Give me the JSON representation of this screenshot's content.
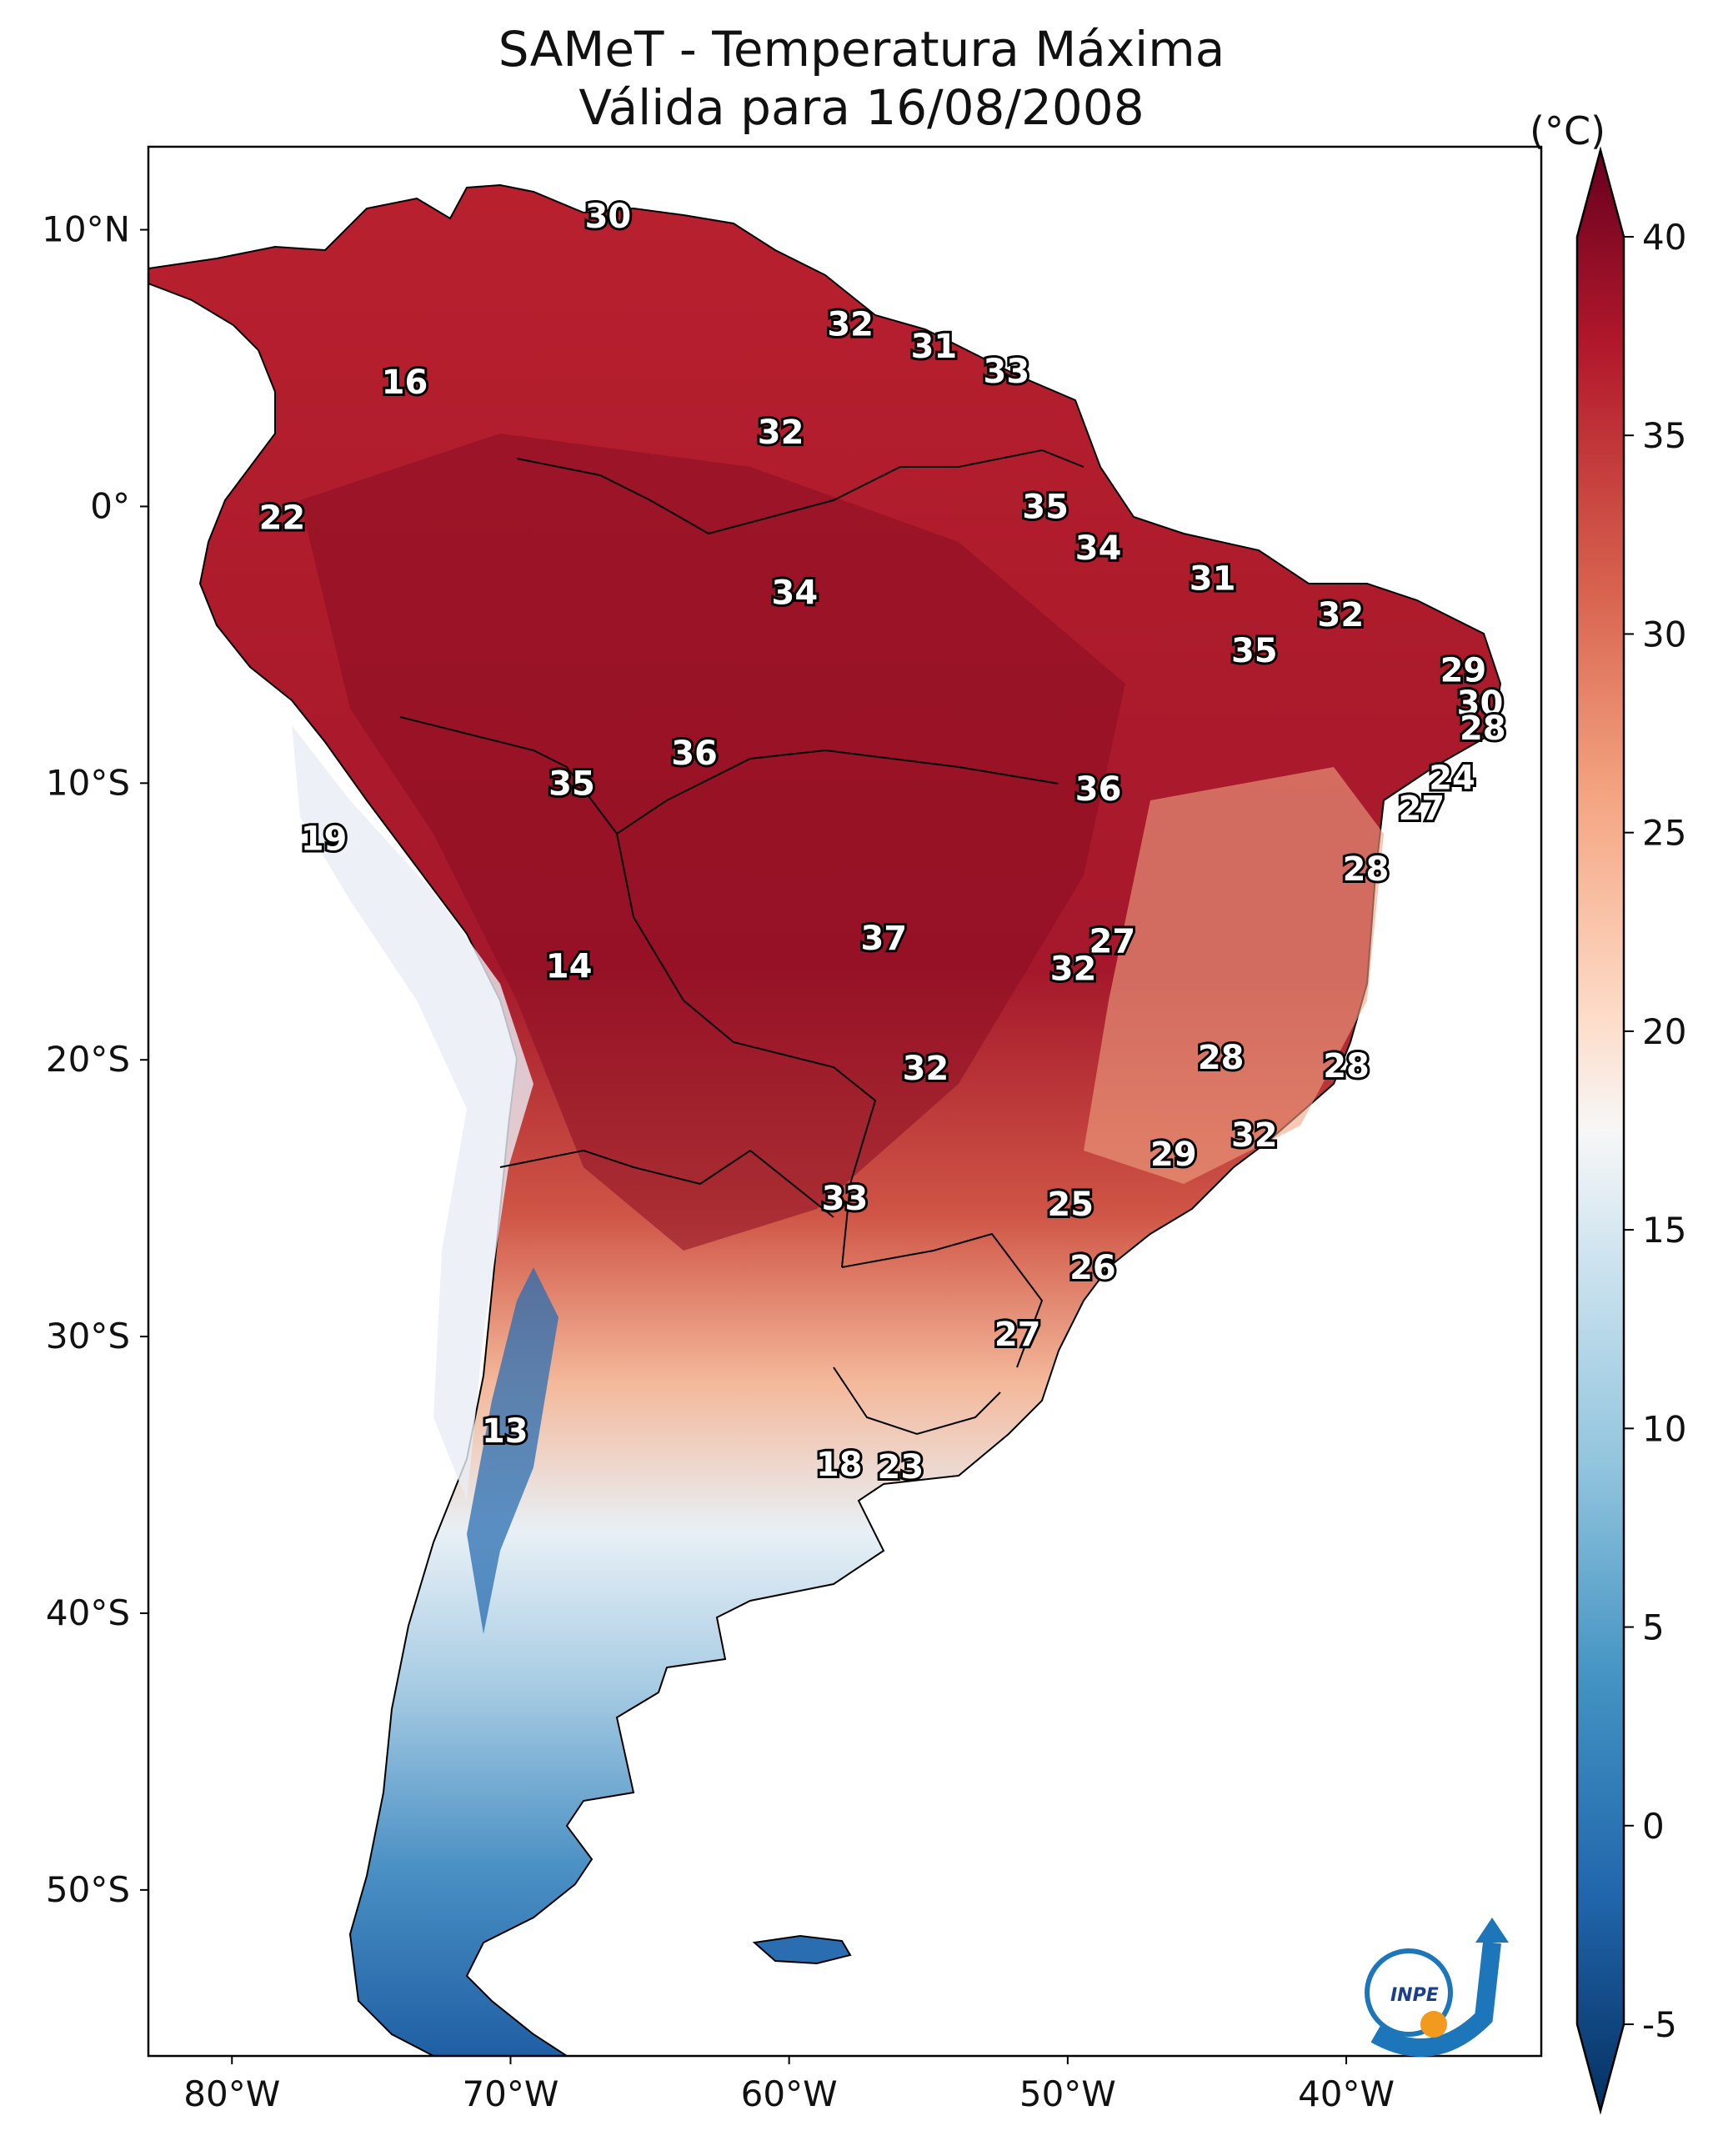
{
  "title": {
    "line1": "SAMeT - Temperatura Máxima",
    "line2": "Válida para 16/08/2008"
  },
  "x_axis": {
    "ticks": [
      {
        "lon": -80,
        "label": "80°W"
      },
      {
        "lon": -70,
        "label": "70°W"
      },
      {
        "lon": -60,
        "label": "60°W"
      },
      {
        "lon": -50,
        "label": "50°W"
      },
      {
        "lon": -40,
        "label": "40°W"
      }
    ]
  },
  "y_axis": {
    "ticks": [
      {
        "lat": 10,
        "label": "10°N"
      },
      {
        "lat": 0,
        "label": "0°"
      },
      {
        "lat": -10,
        "label": "10°S"
      },
      {
        "lat": -20,
        "label": "20°S"
      },
      {
        "lat": -30,
        "label": "30°S"
      },
      {
        "lat": -40,
        "label": "40°S"
      },
      {
        "lat": -50,
        "label": "50°S"
      }
    ]
  },
  "extent": {
    "lon_min": -83,
    "lon_max": -33,
    "lat_min": -56,
    "lat_max": 13
  },
  "colorbar": {
    "unit": "(°C)",
    "min": -5,
    "max": 40,
    "ticks": [
      {
        "value": 40,
        "label": "40"
      },
      {
        "value": 35,
        "label": "35"
      },
      {
        "value": 30,
        "label": "30"
      },
      {
        "value": 25,
        "label": "25"
      },
      {
        "value": 20,
        "label": "20"
      },
      {
        "value": 15,
        "label": "15"
      },
      {
        "value": 10,
        "label": "10"
      },
      {
        "value": 5,
        "label": "5"
      },
      {
        "value": 0,
        "label": "0"
      },
      {
        "value": -5,
        "label": "-5"
      }
    ],
    "colors": [
      "#053061",
      "#2166ac",
      "#4393c3",
      "#92c5de",
      "#d1e5f0",
      "#f7f7f7",
      "#fddbc7",
      "#f4a582",
      "#d6604d",
      "#b2182b",
      "#67001f"
    ]
  },
  "station_values": [
    {
      "value": "30",
      "lon": -66.5,
      "lat": 10.5
    },
    {
      "value": "32",
      "lon": -57.8,
      "lat": 6.6
    },
    {
      "value": "31",
      "lon": -54.8,
      "lat": 5.8
    },
    {
      "value": "33",
      "lon": -52.2,
      "lat": 4.9
    },
    {
      "value": "16",
      "lon": -73.8,
      "lat": 4.5
    },
    {
      "value": "32",
      "lon": -60.3,
      "lat": 2.7
    },
    {
      "value": "35",
      "lon": -50.8,
      "lat": 0.0
    },
    {
      "value": "22",
      "lon": -78.2,
      "lat": -0.4
    },
    {
      "value": "34",
      "lon": -48.9,
      "lat": -1.5
    },
    {
      "value": "31",
      "lon": -44.8,
      "lat": -2.6
    },
    {
      "value": "34",
      "lon": -59.8,
      "lat": -3.1
    },
    {
      "value": "32",
      "lon": -40.2,
      "lat": -3.9
    },
    {
      "value": "35",
      "lon": -43.3,
      "lat": -5.2
    },
    {
      "value": "29",
      "lon": -35.8,
      "lat": -5.9
    },
    {
      "value": "30",
      "lon": -35.2,
      "lat": -7.1
    },
    {
      "value": "28",
      "lon": -35.1,
      "lat": -8.0
    },
    {
      "value": "36",
      "lon": -63.4,
      "lat": -8.9
    },
    {
      "value": "35",
      "lon": -67.8,
      "lat": -10.0
    },
    {
      "value": "24",
      "lon": -36.2,
      "lat": -9.8
    },
    {
      "value": "36",
      "lon": -48.9,
      "lat": -10.2
    },
    {
      "value": "27",
      "lon": -37.3,
      "lat": -10.9
    },
    {
      "value": "19",
      "lon": -76.7,
      "lat": -12.0
    },
    {
      "value": "28",
      "lon": -39.3,
      "lat": -13.1
    },
    {
      "value": "37",
      "lon": -56.6,
      "lat": -15.6
    },
    {
      "value": "27",
      "lon": -48.4,
      "lat": -15.7
    },
    {
      "value": "14",
      "lon": -67.9,
      "lat": -16.6
    },
    {
      "value": "32",
      "lon": -49.8,
      "lat": -16.7
    },
    {
      "value": "28",
      "lon": -44.5,
      "lat": -19.9
    },
    {
      "value": "28",
      "lon": -40.0,
      "lat": -20.2
    },
    {
      "value": "32",
      "lon": -55.1,
      "lat": -20.3
    },
    {
      "value": "32",
      "lon": -43.3,
      "lat": -22.7
    },
    {
      "value": "29",
      "lon": -46.2,
      "lat": -23.4
    },
    {
      "value": "33",
      "lon": -58.0,
      "lat": -25.0
    },
    {
      "value": "25",
      "lon": -49.9,
      "lat": -25.2
    },
    {
      "value": "26",
      "lon": -49.1,
      "lat": -27.5
    },
    {
      "value": "27",
      "lon": -51.8,
      "lat": -29.9
    },
    {
      "value": "13",
      "lon": -70.2,
      "lat": -33.4
    },
    {
      "value": "18",
      "lon": -58.2,
      "lat": -34.6
    },
    {
      "value": "23",
      "lon": -56.0,
      "lat": -34.7
    }
  ],
  "logo": {
    "text": "INPE"
  }
}
